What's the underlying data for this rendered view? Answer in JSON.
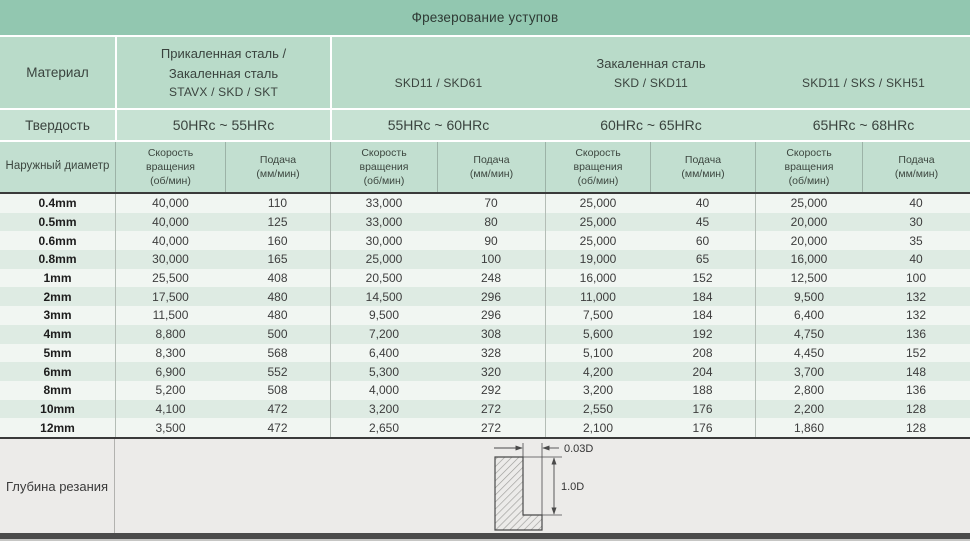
{
  "title": "Фрезерование уступов",
  "colors": {
    "title_band": "#92c7b0",
    "material_row": "#b9dbc9",
    "hardness_row": "#c7e2d3",
    "column_header_row": "#c2dfd0",
    "row_odd": "#f1f6f2",
    "row_even": "#deebe3",
    "footer_row": "#ecebe9",
    "dark_rule": "#3a3a3a",
    "bottom_band": "#4b4b4b"
  },
  "header": {
    "material_label": "Материал",
    "hardness_label": "Твердость",
    "diameter_label": "Наружный диаметр",
    "group1_material_lines": [
      "Прикаленная сталь /",
      "Закаленная сталь",
      "STAVX / SKD / SKT"
    ],
    "merged_material_title": "Закаленная сталь",
    "group_materials": [
      "SKD11 / SKD61",
      "SKD / SKD11",
      "SKD11 / SKS / SKH51"
    ],
    "hardness_values": [
      "50HRc ~ 55HRc",
      "55HRc ~ 60HRc",
      "60HRc ~ 65HRc",
      "65HRc ~ 68HRc"
    ],
    "speed_lines": [
      "Скорость",
      "вращения",
      "(об/мин)"
    ],
    "feed_lines": [
      "Подача",
      "(мм/мин)"
    ]
  },
  "rows": [
    {
      "diameter": "0.4mm",
      "cells": [
        "40,000",
        "110",
        "33,000",
        "70",
        "25,000",
        "40",
        "25,000",
        "40"
      ]
    },
    {
      "diameter": "0.5mm",
      "cells": [
        "40,000",
        "125",
        "33,000",
        "80",
        "25,000",
        "45",
        "20,000",
        "30"
      ]
    },
    {
      "diameter": "0.6mm",
      "cells": [
        "40,000",
        "160",
        "30,000",
        "90",
        "25,000",
        "60",
        "20,000",
        "35"
      ]
    },
    {
      "diameter": "0.8mm",
      "cells": [
        "30,000",
        "165",
        "25,000",
        "100",
        "19,000",
        "65",
        "16,000",
        "40"
      ]
    },
    {
      "diameter": "1mm",
      "cells": [
        "25,500",
        "408",
        "20,500",
        "248",
        "16,000",
        "152",
        "12,500",
        "100"
      ]
    },
    {
      "diameter": "2mm",
      "cells": [
        "17,500",
        "480",
        "14,500",
        "296",
        "11,000",
        "184",
        "9,500",
        "132"
      ]
    },
    {
      "diameter": "3mm",
      "cells": [
        "11,500",
        "480",
        "9,500",
        "296",
        "7,500",
        "184",
        "6,400",
        "132"
      ]
    },
    {
      "diameter": "4mm",
      "cells": [
        "8,800",
        "500",
        "7,200",
        "308",
        "5,600",
        "192",
        "4,750",
        "136"
      ]
    },
    {
      "diameter": "5mm",
      "cells": [
        "8,300",
        "568",
        "6,400",
        "328",
        "5,100",
        "208",
        "4,450",
        "152"
      ]
    },
    {
      "diameter": "6mm",
      "cells": [
        "6,900",
        "552",
        "5,300",
        "320",
        "4,200",
        "204",
        "3,700",
        "148"
      ]
    },
    {
      "diameter": "8mm",
      "cells": [
        "5,200",
        "508",
        "4,000",
        "292",
        "3,200",
        "188",
        "2,800",
        "136"
      ]
    },
    {
      "diameter": "10mm",
      "cells": [
        "4,100",
        "472",
        "3,200",
        "272",
        "2,550",
        "176",
        "2,200",
        "128"
      ]
    },
    {
      "diameter": "12mm",
      "cells": [
        "3,500",
        "472",
        "2,650",
        "272",
        "2,100",
        "176",
        "1,860",
        "128"
      ]
    }
  ],
  "footer": {
    "depth_label": "Глубина резания",
    "dim_step_width": "0.03D",
    "dim_depth": "1.0D"
  }
}
